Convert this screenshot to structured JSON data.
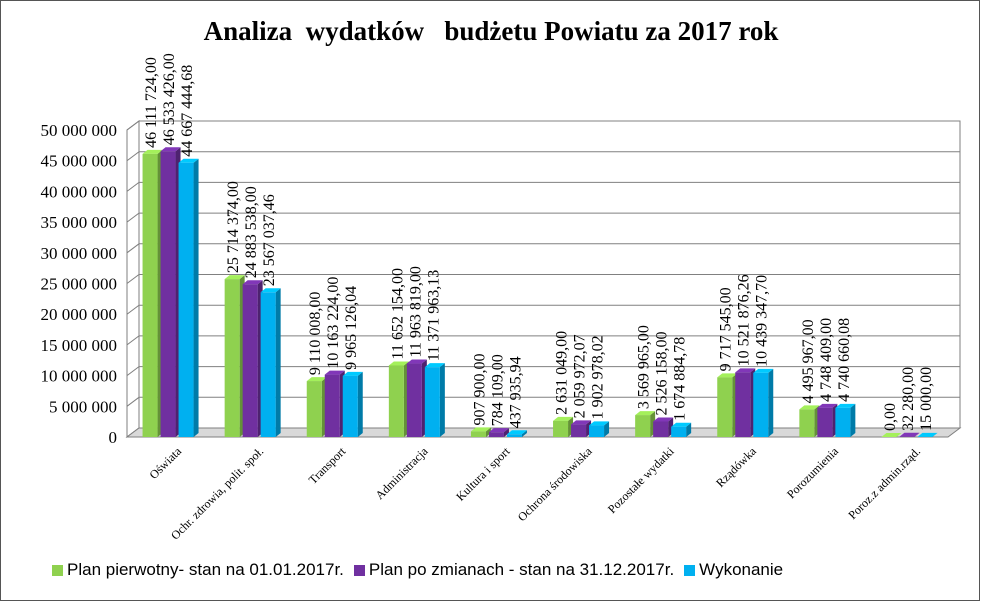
{
  "chart_data": {
    "type": "bar",
    "title": "Analiza  wydatków   budżetu Powiatu za 2017 rok",
    "categories": [
      "Oświata",
      "Ochr. zdrowia, polit. społ.",
      "Transport",
      "Administracja",
      "Kultura i sport",
      "Ochrona środowiska",
      "Pozostałe wydatki",
      "Rządówka",
      "Porozumienia",
      "Poroz.z admin.rząd."
    ],
    "series": [
      {
        "name": "Plan pierwotny- stan na 01.01.2017r.",
        "color": "#8fd14f",
        "values": [
          46111724.0,
          25714374.0,
          9110008.0,
          11652154.0,
          907900.0,
          2631049.0,
          3569965.0,
          9717545.0,
          4495967.0,
          0.0
        ],
        "labels": [
          "46 111 724,00",
          "25 714 374,00",
          "9 110 008,00",
          "11 652 154,00",
          "907 900,00",
          "2 631 049,00",
          "3 569 965,00",
          "9 717 545,00",
          "4 495 967,00",
          "0,00"
        ]
      },
      {
        "name": "Plan po zmianach - stan na 31.12.2017r.",
        "color": "#7030a0",
        "values": [
          46533426.0,
          24883538.0,
          10163224.0,
          11963819.0,
          784109.0,
          2059972.07,
          2526158.0,
          10521876.26,
          4748409.0,
          32280.0
        ],
        "labels": [
          "46 533 426,00",
          "24 883 538,00",
          "10 163 224,00",
          "11 963 819,00",
          "784 109,00",
          "2 059 972,07",
          "2 526 158,00",
          "10 521 876,26",
          "4 748 409,00",
          "32 280,00"
        ]
      },
      {
        "name": "Wykonanie",
        "color": "#00b0f0",
        "values": [
          44667444.68,
          23567037.46,
          9965126.04,
          11371963.13,
          437935.94,
          1902978.02,
          1674884.78,
          10439347.7,
          4740660.08,
          15000.0
        ],
        "labels": [
          "44 667 444,68",
          "23 567 037,46",
          "9 965 126,04",
          "11 371 963,13",
          "437 935,94",
          "1 902 978,02",
          "1 674 884,78",
          "10 439 347,70",
          "4 740 660,08",
          "15 000,00"
        ]
      }
    ],
    "yticks": [
      "0",
      "5 000 000",
      "10 000 000",
      "15 000 000",
      "20 000 000",
      "25 000 000",
      "30 000 000",
      "35 000 000",
      "40 000 000",
      "45 000 000",
      "50 000 000"
    ],
    "ylim": [
      0,
      50000000
    ],
    "grid": true,
    "legend_position": "bottom"
  }
}
